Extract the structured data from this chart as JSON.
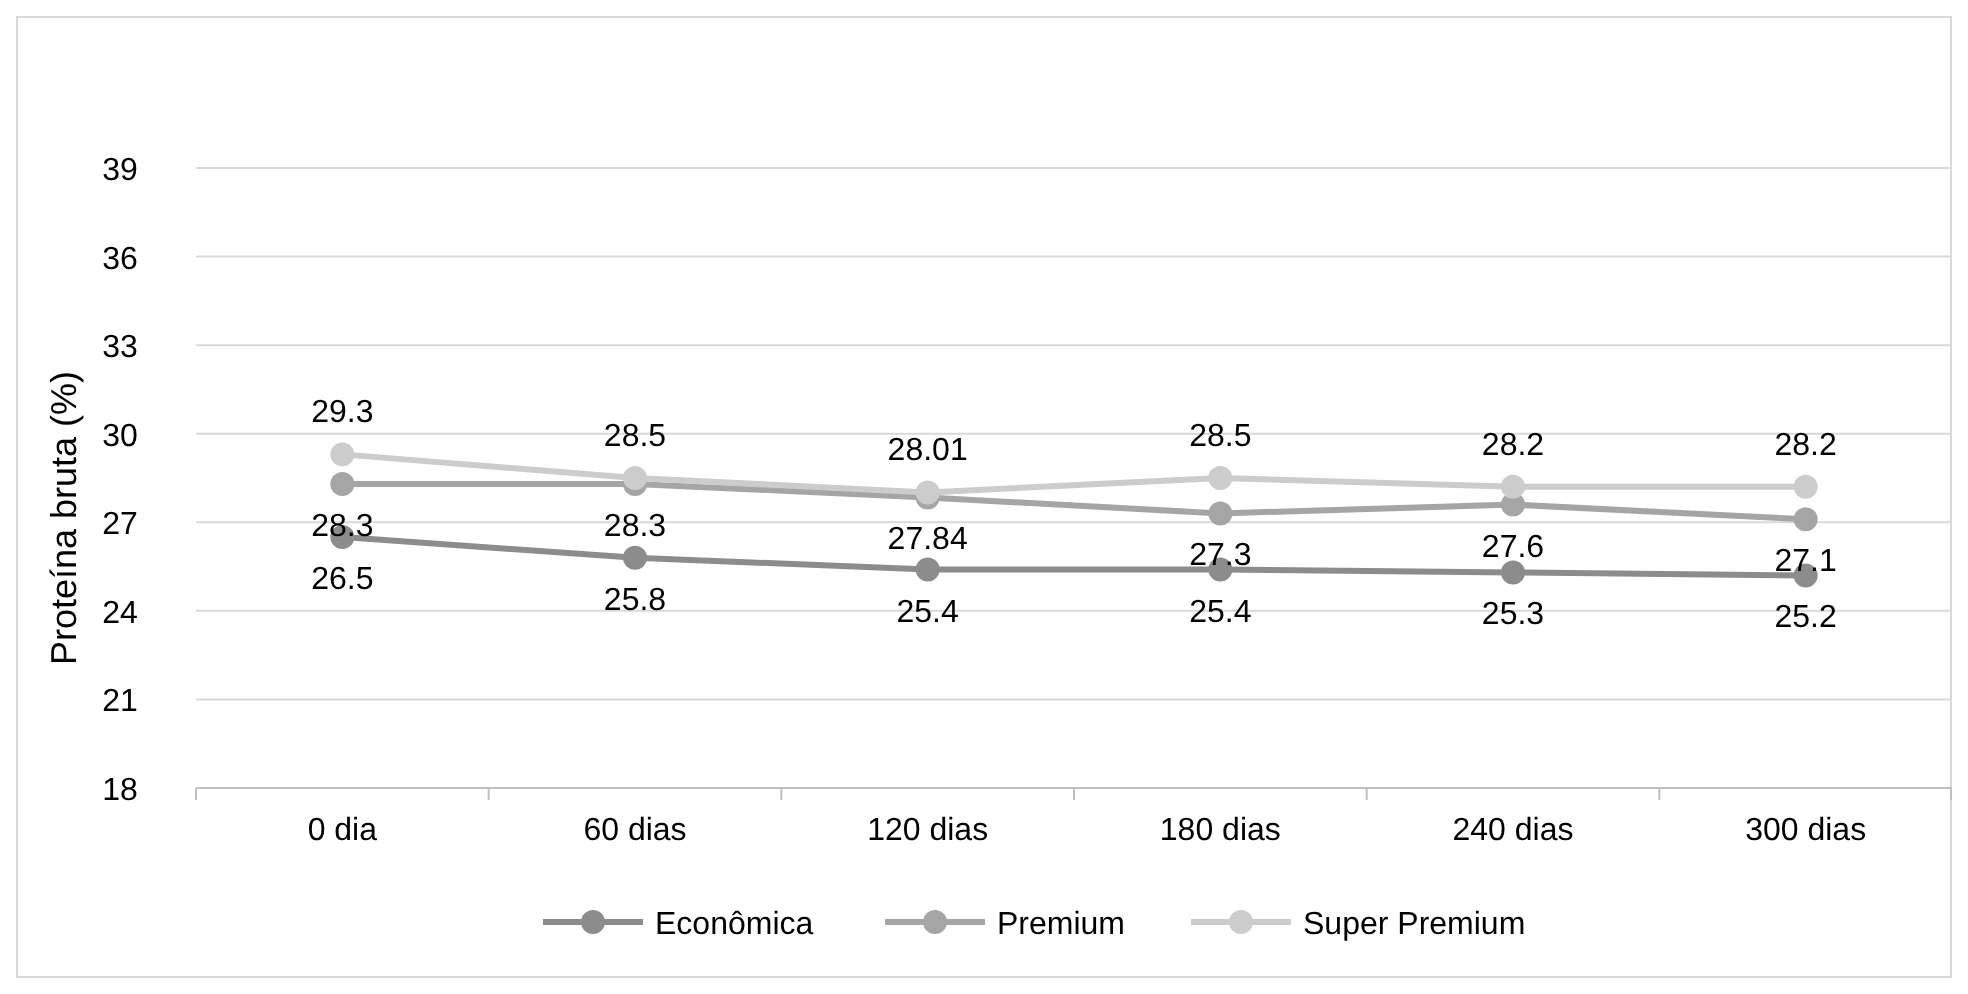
{
  "chart_data": {
    "type": "line",
    "ylabel": "Proteína bruta (%)",
    "categories": [
      "0 dia",
      "60 dias",
      "120 dias",
      "180 dias",
      "240 dias",
      "300 dias"
    ],
    "series": [
      {
        "name": "Econômica",
        "color": "#8c8c8c",
        "values": [
          26.5,
          25.8,
          25.4,
          25.4,
          25.3,
          25.2
        ]
      },
      {
        "name": "Premium",
        "color": "#a5a5a5",
        "values": [
          28.3,
          28.3,
          27.84,
          27.3,
          27.6,
          27.1
        ]
      },
      {
        "name": "Super Premium",
        "color": "#cccccc",
        "values": [
          29.3,
          28.5,
          28.01,
          28.5,
          28.2,
          28.2
        ]
      }
    ],
    "ylim": [
      18,
      39
    ],
    "yticks": [
      18,
      21,
      24,
      27,
      30,
      33,
      36,
      39
    ],
    "grid": "y",
    "legend": "bottom",
    "marker": "circle",
    "line_style": "solid",
    "data_labels": true
  }
}
